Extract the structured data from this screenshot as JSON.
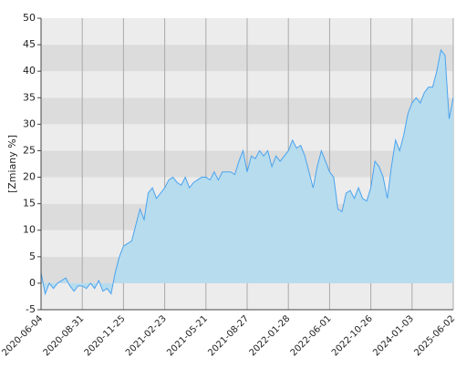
{
  "chart_data": {
    "type": "area",
    "y_label": "[Zmiany %]",
    "values": [
      2,
      -2,
      0,
      -1,
      0,
      0.5,
      1,
      -0.5,
      -1.5,
      -0.5,
      -0.5,
      -1,
      0,
      -1,
      0.5,
      -1.5,
      -1,
      -2,
      2,
      5,
      7,
      7.5,
      8,
      11,
      14,
      12,
      17,
      18,
      16,
      17,
      18,
      19.5,
      20,
      19,
      18.5,
      20,
      18,
      19,
      19.5,
      20,
      20,
      19.5,
      21,
      19.5,
      21,
      21,
      21,
      20.5,
      23,
      25,
      21,
      24,
      23.5,
      25,
      24,
      25,
      22,
      24,
      23,
      24,
      25,
      27,
      25.5,
      26,
      24,
      21,
      18,
      22,
      25,
      23,
      21,
      20,
      14,
      13.5,
      17,
      17.5,
      16,
      18,
      16,
      15.5,
      18,
      23,
      22,
      20,
      16,
      22,
      27,
      25,
      28,
      32,
      34,
      35,
      34,
      36,
      37,
      37,
      40,
      44,
      43,
      31,
      35
    ],
    "line_color": "#4aa3ee",
    "fill_color": "#b6dcee",
    "xlim": [
      0,
      100
    ],
    "xticks": [
      {
        "value": 0,
        "label": "2020-06-04"
      },
      {
        "value": 10,
        "label": "2020-08-31"
      },
      {
        "value": 20,
        "label": "2020-11-25"
      },
      {
        "value": 30,
        "label": "2021-02-23"
      },
      {
        "value": 40,
        "label": "2021-05-21"
      },
      {
        "value": 50,
        "label": "2021-08-27"
      },
      {
        "value": 60,
        "label": "2022-01-28"
      },
      {
        "value": 70,
        "label": "2022-06-01"
      },
      {
        "value": 80,
        "label": "2022-10-26"
      },
      {
        "value": 90,
        "label": "2024-01-03"
      },
      {
        "value": 100,
        "label": "2025-06-02"
      }
    ],
    "ylim": [
      -5,
      50
    ],
    "yticks": [
      -5,
      0,
      5,
      10,
      15,
      20,
      25,
      30,
      35,
      40,
      45,
      50
    ],
    "grid": true
  }
}
